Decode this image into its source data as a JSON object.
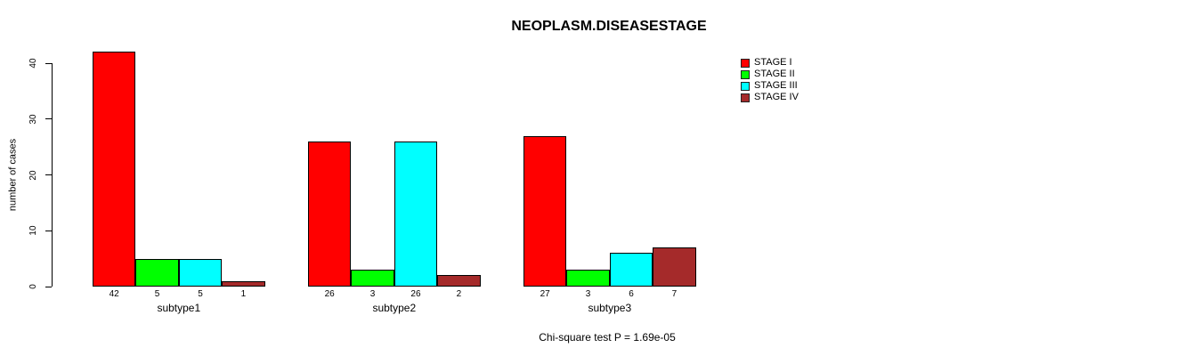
{
  "title": "NEOPLASM.DISEASESTAGE",
  "chart_data": {
    "type": "bar",
    "title": "NEOPLASM.DISEASESTAGE",
    "xlabel": "",
    "ylabel": "number of cases",
    "categories": [
      "subtype1",
      "subtype2",
      "subtype3"
    ],
    "series": [
      {
        "name": "STAGE I",
        "color": "#FF0000",
        "values": [
          42,
          26,
          27
        ]
      },
      {
        "name": "STAGE II",
        "color": "#00FF00",
        "values": [
          5,
          3,
          3
        ]
      },
      {
        "name": "STAGE III",
        "color": "#00FFFF",
        "values": [
          5,
          26,
          6
        ]
      },
      {
        "name": "STAGE IV",
        "color": "#A52A2A",
        "values": [
          1,
          2,
          7
        ]
      }
    ],
    "bar_value_labels": [
      [
        42,
        5,
        5,
        1
      ],
      [
        26,
        3,
        26,
        2
      ],
      [
        27,
        3,
        6,
        7
      ]
    ],
    "ylim": [
      0,
      40
    ],
    "yticks": [
      0,
      10,
      20,
      30,
      40
    ],
    "grid": false,
    "legend_position": "top-right",
    "annotation": "Chi-square test P = 1.69e-05",
    "bar_outline_color": "#000000",
    "text_color": "#000000"
  }
}
